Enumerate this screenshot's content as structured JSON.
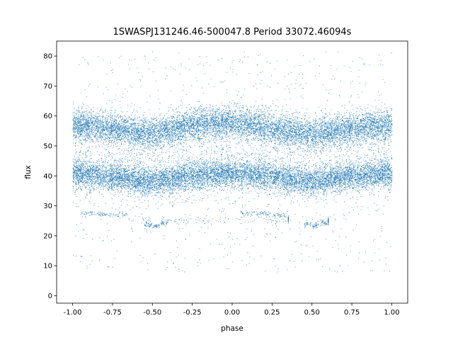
{
  "chart_data": {
    "type": "scatter",
    "title": "1SWASPJ131246.46-500047.8 Period 33072.46094s",
    "xlabel": "phase",
    "ylabel": "flux",
    "xlim": [
      -1.1,
      1.1
    ],
    "ylim": [
      -2.5,
      85
    ],
    "xticks": [
      "-1.00",
      "-0.75",
      "-0.50",
      "-0.25",
      "0.00",
      "0.25",
      "0.50",
      "0.75",
      "1.00"
    ],
    "xtick_values": [
      -1,
      -0.75,
      -0.5,
      -0.25,
      0,
      0.25,
      0.5,
      0.75,
      1
    ],
    "yticks": [
      "0",
      "10",
      "20",
      "30",
      "40",
      "50",
      "60",
      "70",
      "80"
    ],
    "ytick_values": [
      0,
      10,
      20,
      30,
      40,
      50,
      60,
      70,
      80
    ],
    "point_color": "#1f77b4",
    "grid": false,
    "series": [
      {
        "phase": [
          -1,
          -0.75,
          -0.5,
          -0.25,
          0,
          0.25,
          0.5,
          0.75,
          1
        ],
        "flux": [
          57,
          56,
          54,
          57,
          58,
          56,
          54,
          56,
          57
        ]
      },
      {
        "phase": [
          -1,
          -0.75,
          -0.5,
          -0.25,
          0,
          0.25,
          0.5,
          0.75,
          1
        ],
        "flux": [
          41,
          40,
          38,
          40,
          41,
          40,
          38,
          40,
          41
        ]
      },
      {
        "phase": [
          -0.95,
          -0.85,
          -0.75,
          -0.65,
          0.05,
          0.15,
          0.25,
          0.35
        ],
        "flux": [
          27.5,
          27.3,
          27,
          25.5,
          27.5,
          27.3,
          27,
          25.5
        ]
      },
      {
        "phase": [
          -0.55,
          -0.5,
          -0.45,
          -0.4,
          0.45,
          0.5,
          0.55,
          0.6
        ],
        "flux": [
          24,
          23.5,
          24.5,
          25,
          24,
          23.5,
          24.5,
          25
        ]
      }
    ]
  }
}
